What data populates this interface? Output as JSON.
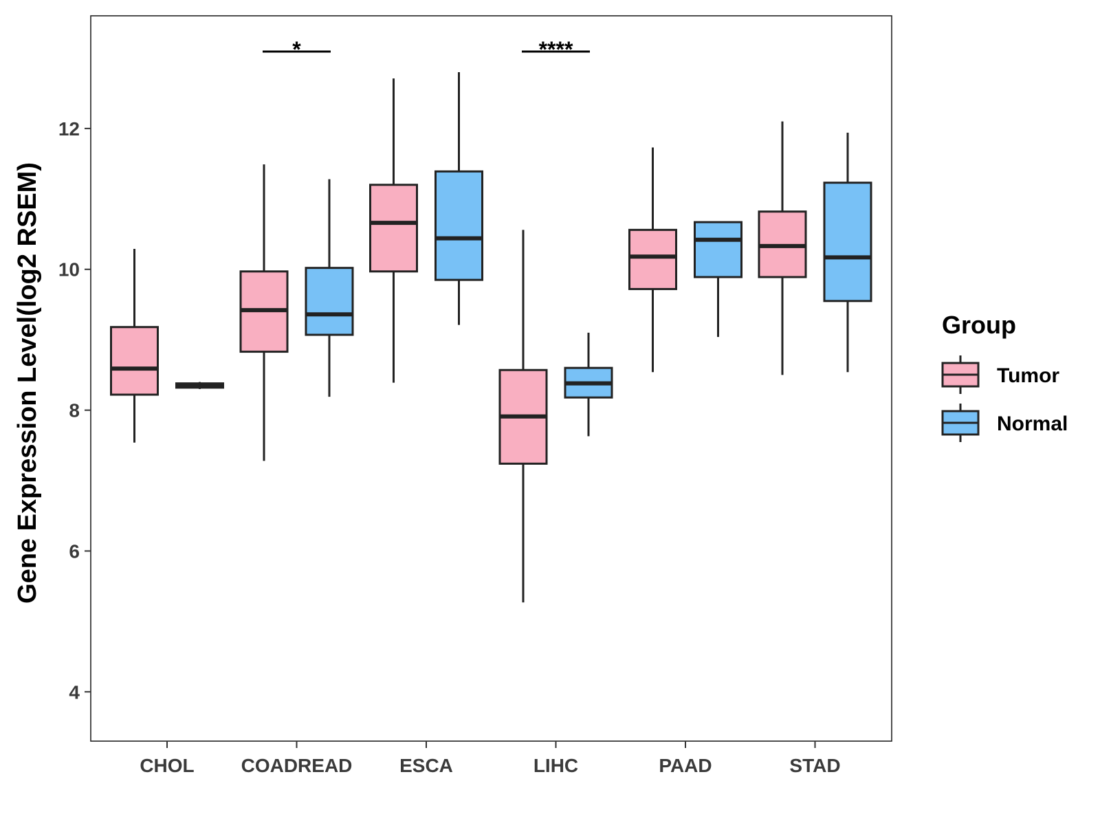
{
  "chart_data": {
    "type": "boxplot",
    "xlabel": "",
    "ylabel": "Gene Expression Level(log2 RSEM)",
    "ylim": [
      3.3,
      13.6
    ],
    "yticks": [
      4,
      6,
      8,
      10,
      12
    ],
    "grid": false,
    "legend": {
      "title": "Group",
      "position": "right"
    },
    "colors": {
      "Tumor": "#f9afc1",
      "Normal": "#78c1f6"
    },
    "categories": [
      "CHOL",
      "COADREAD",
      "ESCA",
      "LIHC",
      "PAAD",
      "STAD"
    ],
    "series": [
      {
        "name": "Tumor",
        "boxes": [
          {
            "whisker_low": 7.54,
            "q1": 8.22,
            "median": 8.59,
            "q3": 9.18,
            "whisker_high": 10.29
          },
          {
            "whisker_low": 7.28,
            "q1": 8.83,
            "median": 9.42,
            "q3": 9.97,
            "whisker_high": 11.49
          },
          {
            "whisker_low": 8.39,
            "q1": 9.97,
            "median": 10.66,
            "q3": 11.2,
            "whisker_high": 12.71
          },
          {
            "whisker_low": 5.27,
            "q1": 7.24,
            "median": 7.91,
            "q3": 8.57,
            "whisker_high": 10.56
          },
          {
            "whisker_low": 8.54,
            "q1": 9.72,
            "median": 10.18,
            "q3": 10.56,
            "whisker_high": 11.73
          },
          {
            "whisker_low": 8.5,
            "q1": 9.89,
            "median": 10.33,
            "q3": 10.82,
            "whisker_high": 12.1
          }
        ]
      },
      {
        "name": "Normal",
        "boxes": [
          {
            "whisker_low": 8.3,
            "q1": 8.32,
            "median": 8.36,
            "q3": 8.38,
            "whisker_high": 8.4
          },
          {
            "whisker_low": 8.19,
            "q1": 9.07,
            "median": 9.36,
            "q3": 10.02,
            "whisker_high": 11.28
          },
          {
            "whisker_low": 9.21,
            "q1": 9.85,
            "median": 10.44,
            "q3": 11.39,
            "whisker_high": 12.8
          },
          {
            "whisker_low": 7.63,
            "q1": 8.18,
            "median": 8.38,
            "q3": 8.6,
            "whisker_high": 9.1
          },
          {
            "whisker_low": 9.04,
            "q1": 9.89,
            "median": 10.42,
            "q3": 10.67,
            "whisker_high": 10.67
          },
          {
            "whisker_low": 8.54,
            "q1": 9.55,
            "median": 10.17,
            "q3": 11.23,
            "whisker_high": 11.94
          }
        ]
      }
    ],
    "annotations": [
      {
        "category": "COADREAD",
        "label": "*"
      },
      {
        "category": "LIHC",
        "label": "****"
      }
    ]
  }
}
